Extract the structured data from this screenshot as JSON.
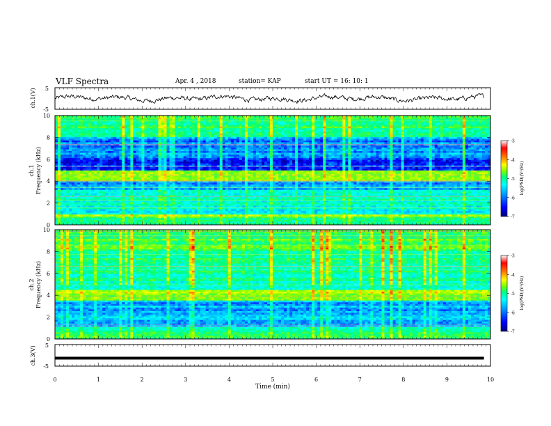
{
  "header": {
    "title": "VLF Spectra",
    "date": "Apr. 4 , 2018",
    "station": "station= KAP",
    "start": "start  UT =  16: 10: 1"
  },
  "chart_data": [
    {
      "type": "line",
      "panel": "ch1-waveform",
      "ylabel": "ch.1(V)",
      "yticks": [
        "5",
        "-5"
      ],
      "ylim": [
        -5,
        5
      ],
      "xlim": [
        0,
        10
      ],
      "x_data_range": [
        0,
        9.85
      ],
      "description_values": "noisy waveform fluctuating roughly between -2.5 and 2 V around 0"
    },
    {
      "type": "heatmap",
      "panel": "ch1-spectrogram",
      "ylabel_line1": "ch.1",
      "ylabel_line2": "Frequency (kHz)",
      "yticks": [
        "0",
        "2",
        "4",
        "6",
        "8",
        "10"
      ],
      "ylim": [
        0,
        10
      ],
      "xlim": [
        0,
        10
      ],
      "colorbar": {
        "label": "log(PSD)(V²/Hz)",
        "ticks": [
          "-3",
          "-4",
          "-5",
          "-6",
          "-7"
        ],
        "range": [
          -7,
          -3
        ]
      },
      "bands": [
        {
          "f0": 0.0,
          "f1": 0.6,
          "level": -5.2
        },
        {
          "f0": 0.6,
          "f1": 1.0,
          "level": -4.8
        },
        {
          "f0": 1.0,
          "f1": 2.0,
          "level": -5.6
        },
        {
          "f0": 2.0,
          "f1": 3.3,
          "level": -5.5
        },
        {
          "f0": 3.3,
          "f1": 4.0,
          "level": -6.0
        },
        {
          "f0": 4.0,
          "f1": 5.0,
          "level": -4.8
        },
        {
          "f0": 5.0,
          "f1": 6.2,
          "level": -6.4
        },
        {
          "f0": 6.2,
          "f1": 8.0,
          "level": -6.1
        },
        {
          "f0": 8.0,
          "f1": 10.0,
          "level": -5.2
        }
      ]
    },
    {
      "type": "heatmap",
      "panel": "ch2-spectrogram",
      "ylabel_line1": "ch.2",
      "ylabel_line2": "Frequency (kHz)",
      "yticks": [
        "0",
        "2",
        "4",
        "6",
        "8",
        "10"
      ],
      "ylim": [
        0,
        10
      ],
      "xlim": [
        0,
        10
      ],
      "colorbar": {
        "label": "log(PSD)(V²/Hz)",
        "ticks": [
          "-3",
          "-4",
          "-5",
          "-6",
          "-7"
        ],
        "range": [
          -7,
          -3
        ]
      },
      "bands": [
        {
          "f0": 0.0,
          "f1": 0.6,
          "level": -5.2
        },
        {
          "f0": 0.6,
          "f1": 1.2,
          "level": -5.4
        },
        {
          "f0": 1.2,
          "f1": 2.6,
          "level": -5.9
        },
        {
          "f0": 2.6,
          "f1": 3.5,
          "level": -6.0
        },
        {
          "f0": 3.5,
          "f1": 4.5,
          "level": -4.7
        },
        {
          "f0": 4.5,
          "f1": 6.0,
          "level": -5.4
        },
        {
          "f0": 6.0,
          "f1": 8.0,
          "level": -5.3
        },
        {
          "f0": 8.0,
          "f1": 10.0,
          "level": -5.0
        }
      ]
    },
    {
      "type": "line",
      "panel": "ch3-waveform",
      "ylabel": "ch.3(V)",
      "yticks": [
        "5",
        "-5"
      ],
      "ylim": [
        -5,
        5
      ],
      "xlim": [
        0,
        10
      ],
      "x": [
        0,
        9.85
      ],
      "y": [
        -1.3,
        -1.3
      ]
    }
  ],
  "x_axis": {
    "label": "Time (min)",
    "ticks": [
      "0",
      "1",
      "2",
      "3",
      "4",
      "5",
      "6",
      "7",
      "8",
      "9",
      "10"
    ]
  },
  "colors": {
    "colormap": [
      "#000080",
      "#0000ff",
      "#00a0ff",
      "#00ffff",
      "#00ff80",
      "#80ff00",
      "#ffff00",
      "#ff8000",
      "#ff0000",
      "#ffffff"
    ],
    "waveform": "#000000"
  }
}
